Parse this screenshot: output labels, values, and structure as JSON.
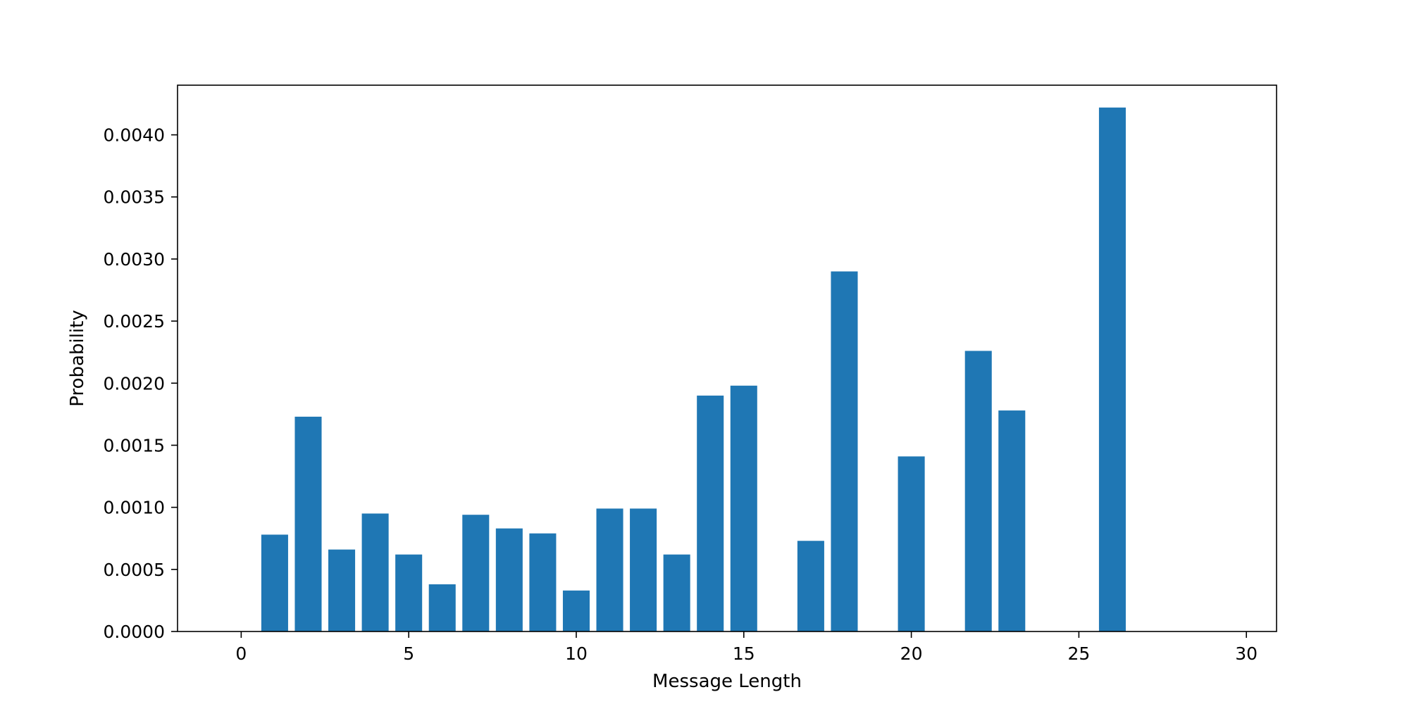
{
  "chart_data": {
    "type": "bar",
    "title": "",
    "xlabel": "Message Length",
    "ylabel": "Probability",
    "xlim": [
      -1.9,
      30.9
    ],
    "ylim": [
      0,
      0.0044
    ],
    "grid": false,
    "bar_color": "#1f77b4",
    "x_ticks": [
      0,
      5,
      10,
      15,
      20,
      25,
      30
    ],
    "x_tick_labels": [
      "0",
      "5",
      "10",
      "15",
      "20",
      "25",
      "30"
    ],
    "y_ticks": [
      0,
      0.0005,
      0.001,
      0.0015,
      0.002,
      0.0025,
      0.003,
      0.0035,
      0.004
    ],
    "y_tick_labels": [
      "0.0000",
      "0.0005",
      "0.0010",
      "0.0015",
      "0.0020",
      "0.0025",
      "0.0030",
      "0.0035",
      "0.0040"
    ],
    "x": [
      1,
      2,
      3,
      4,
      5,
      6,
      7,
      8,
      9,
      10,
      11,
      12,
      13,
      14,
      15,
      17,
      18,
      20,
      22,
      23,
      26
    ],
    "values": [
      0.00078,
      0.00173,
      0.00066,
      0.00095,
      0.00062,
      0.00038,
      0.00094,
      0.00083,
      0.00079,
      0.00033,
      0.00099,
      0.00099,
      0.00062,
      0.0019,
      0.00198,
      0.00073,
      0.0029,
      0.00141,
      0.00226,
      0.00178,
      0.00422
    ]
  }
}
